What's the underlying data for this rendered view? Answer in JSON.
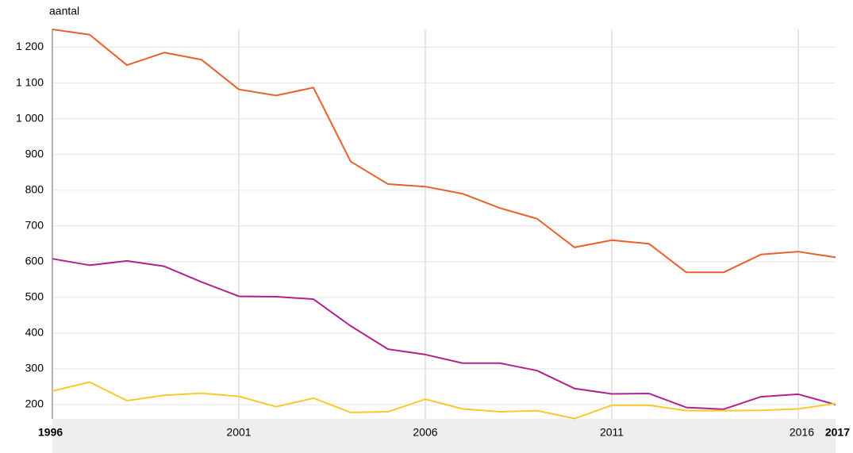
{
  "chart_data": {
    "type": "line",
    "y_label": "aantal",
    "x": [
      1996,
      1997,
      1998,
      1999,
      2000,
      2001,
      2002,
      2003,
      2004,
      2005,
      2006,
      2007,
      2008,
      2009,
      2010,
      2011,
      2012,
      2013,
      2014,
      2015,
      2016,
      2017
    ],
    "series": [
      {
        "color": "#e8602c",
        "values": [
          1250,
          1235,
          1150,
          1185,
          1165,
          1082,
          1065,
          1087,
          880,
          817,
          810,
          790,
          750,
          720,
          640,
          660,
          650,
          570,
          570,
          620,
          628,
          612
        ]
      },
      {
        "color": "#b4218f",
        "values": [
          608,
          590,
          602,
          587,
          543,
          503,
          502,
          495,
          420,
          355,
          340,
          316,
          316,
          295,
          245,
          230,
          231,
          192,
          187,
          222,
          229,
          200
        ]
      },
      {
        "color": "#f7c92a",
        "values": [
          238,
          263,
          211,
          226,
          232,
          223,
          194,
          218,
          178,
          180,
          215,
          188,
          180,
          183,
          161,
          198,
          198,
          183,
          183,
          184,
          188,
          203
        ]
      }
    ],
    "xlim": [
      1996,
      2017
    ],
    "xticks": [
      1996,
      2001,
      2006,
      2011,
      2016,
      2017
    ],
    "ylim": [
      160,
      1250
    ],
    "yticks": [
      200,
      300,
      400,
      500,
      600,
      700,
      800,
      900,
      {
        "value": 1000,
        "label": "1 000"
      },
      {
        "value": 1100,
        "label": "1 100"
      },
      {
        "value": 1200,
        "label": "1 200"
      }
    ],
    "grid": true
  }
}
